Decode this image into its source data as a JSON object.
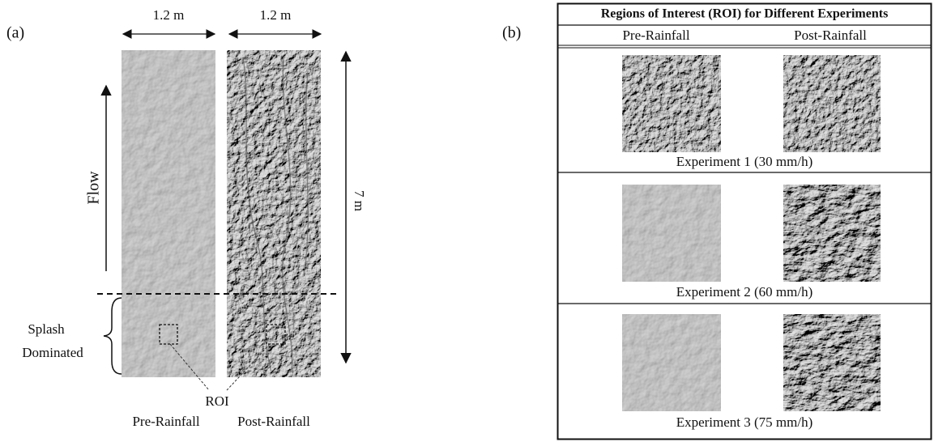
{
  "panel_a": {
    "label": "(a)",
    "width_labels": [
      "1.2 m",
      "1.2 m"
    ],
    "flow_label": "Flow",
    "length_label": "7 m",
    "zone_label": [
      "Splash",
      "Dominated"
    ],
    "roi_label": "ROI",
    "strip_labels": [
      "Pre-Rainfall",
      "Post-Rainfall"
    ]
  },
  "panel_b": {
    "label": "(b)",
    "table": {
      "title": "Regions of Interest (ROI) for Different Experiments",
      "columns": [
        "Pre-Rainfall",
        "Post-Rainfall"
      ],
      "rows": [
        {
          "caption": "Experiment 1 (30 mm/h)"
        },
        {
          "caption": "Experiment 2 (60 mm/h)"
        },
        {
          "caption": "Experiment 3 (75 mm/h)"
        }
      ]
    }
  }
}
